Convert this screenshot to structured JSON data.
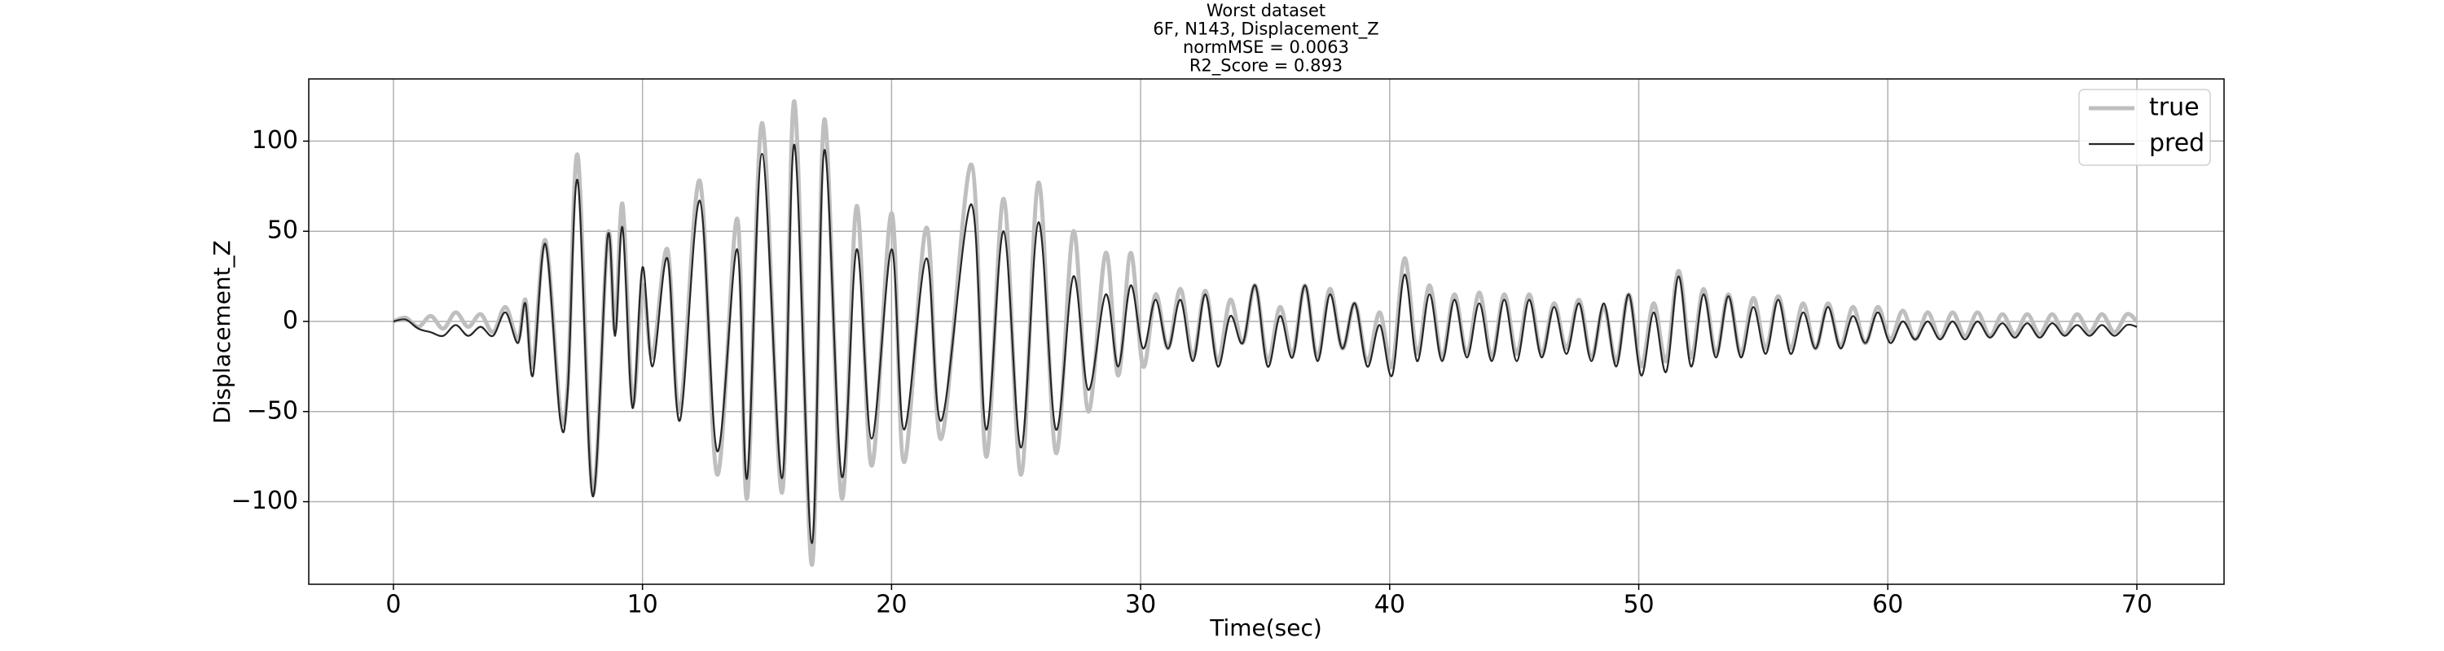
{
  "chart_data": {
    "type": "line",
    "title": [
      "Worst dataset",
      "6F, N143, Displacement_Z",
      "normMSE = 0.0063",
      "R2_Score = 0.893"
    ],
    "xlabel": "Time(sec)",
    "ylabel": "Displacement_Z",
    "xlim": [
      -3.4,
      73.5
    ],
    "ylim": [
      -145.8,
      134.5
    ],
    "xticks": [
      0,
      10,
      20,
      30,
      40,
      50,
      60,
      70
    ],
    "yticks": [
      {
        "value": -100,
        "label": "−100"
      },
      {
        "value": -50,
        "label": "−50"
      },
      0,
      50,
      100
    ],
    "grid": true,
    "legend": "upper right",
    "x": [
      0,
      0.5,
      1.0,
      1.5,
      2.0,
      2.5,
      3.0,
      3.5,
      4.0,
      4.5,
      5.0,
      5.3,
      5.6,
      6.1,
      6.7,
      7.0,
      7.4,
      8.0,
      8.6,
      8.9,
      9.2,
      9.6,
      10.0,
      10.4,
      11.0,
      11.5,
      12.3,
      13.0,
      13.8,
      14.2,
      14.8,
      15.6,
      16.1,
      16.8,
      17.3,
      18.0,
      18.6,
      19.2,
      20.0,
      20.5,
      21.4,
      22.0,
      23.2,
      23.8,
      24.5,
      25.2,
      25.9,
      26.6,
      27.3,
      27.9,
      28.6,
      29.1,
      29.6,
      30.1,
      30.6,
      31.1,
      31.6,
      32.1,
      32.6,
      33.1,
      33.6,
      34.1,
      34.6,
      35.1,
      35.6,
      36.1,
      36.6,
      37.1,
      37.6,
      38.1,
      38.6,
      39.1,
      39.6,
      40.1,
      40.6,
      41.1,
      41.6,
      42.1,
      42.6,
      43.1,
      43.6,
      44.1,
      44.6,
      45.1,
      45.6,
      46.1,
      46.6,
      47.1,
      47.6,
      48.1,
      48.6,
      49.1,
      49.6,
      50.1,
      50.6,
      51.1,
      51.6,
      52.1,
      52.6,
      53.1,
      53.6,
      54.1,
      54.6,
      55.1,
      55.6,
      56.1,
      56.6,
      57.1,
      57.6,
      58.1,
      58.6,
      59.1,
      59.6,
      60.1,
      60.6,
      61.1,
      61.6,
      62.1,
      62.6,
      63.1,
      63.6,
      64.1,
      64.6,
      65.1,
      65.6,
      66.1,
      66.6,
      67.1,
      67.6,
      68.1,
      68.6,
      69.1,
      69.6,
      70.0
    ],
    "series": [
      {
        "name": "true",
        "color": "#bfbfbf",
        "values": [
          0,
          2,
          -3,
          3,
          -4,
          5,
          -3,
          4,
          -6,
          8,
          -10,
          12,
          -25,
          45,
          -50,
          -35,
          92,
          -95,
          48,
          -5,
          65,
          -45,
          20,
          -20,
          40,
          -50,
          78,
          -85,
          57,
          -98,
          110,
          -95,
          122,
          -135,
          112,
          -98,
          64,
          -80,
          60,
          -78,
          52,
          -65,
          87,
          -75,
          68,
          -85,
          77,
          -73,
          50,
          -50,
          38,
          -30,
          38,
          -25,
          15,
          -15,
          18,
          -20,
          17,
          -22,
          12,
          -12,
          20,
          -22,
          8,
          -18,
          20,
          -20,
          18,
          -15,
          10,
          -22,
          5,
          -25,
          35,
          -18,
          20,
          -20,
          15,
          -18,
          16,
          -20,
          15,
          -18,
          15,
          -18,
          10,
          -15,
          12,
          -20,
          8,
          -22,
          15,
          -25,
          10,
          -22,
          28,
          -20,
          18,
          -18,
          15,
          -18,
          13,
          -15,
          14,
          -15,
          10,
          -15,
          10,
          -14,
          8,
          -12,
          8,
          -10,
          6,
          -10,
          5,
          -9,
          5,
          -8,
          5,
          -8,
          4,
          -7,
          4,
          -7,
          4,
          -7,
          4,
          -6,
          4,
          -6,
          4,
          0
        ]
      },
      {
        "name": "pred",
        "color": "#262626",
        "values": [
          0,
          1,
          -4,
          -6,
          -8,
          -2,
          -8,
          -3,
          -8,
          5,
          -12,
          10,
          -30,
          43,
          -55,
          -38,
          78,
          -97,
          47,
          -8,
          52,
          -48,
          30,
          -25,
          35,
          -55,
          67,
          -72,
          40,
          -87,
          93,
          -87,
          98,
          -123,
          95,
          -86,
          40,
          -65,
          40,
          -60,
          35,
          -55,
          65,
          -60,
          50,
          -70,
          55,
          -60,
          25,
          -38,
          15,
          -25,
          20,
          -15,
          12,
          -15,
          12,
          -22,
          15,
          -25,
          3,
          -12,
          20,
          -25,
          3,
          -20,
          20,
          -22,
          15,
          -15,
          10,
          -25,
          -2,
          -30,
          26,
          -22,
          15,
          -22,
          12,
          -20,
          10,
          -22,
          12,
          -22,
          12,
          -20,
          8,
          -18,
          10,
          -22,
          10,
          -25,
          15,
          -30,
          5,
          -28,
          25,
          -25,
          15,
          -20,
          14,
          -20,
          8,
          -18,
          12,
          -18,
          5,
          -15,
          8,
          -15,
          3,
          -12,
          5,
          -12,
          0,
          -10,
          0,
          -10,
          0,
          -10,
          0,
          -9,
          -1,
          -9,
          -1,
          -9,
          -1,
          -8,
          -2,
          -8,
          -2,
          -8,
          -2,
          -3
        ]
      }
    ]
  }
}
